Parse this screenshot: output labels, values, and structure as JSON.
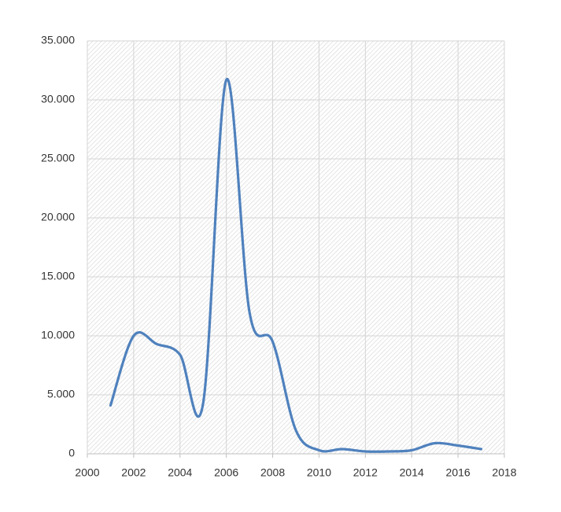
{
  "chart_data": {
    "type": "line",
    "x": [
      2001,
      2002,
      2003,
      2004,
      2005,
      2006,
      2007,
      2008,
      2009,
      2010,
      2011,
      2012,
      2013,
      2014,
      2015,
      2016,
      2017
    ],
    "series": [
      {
        "color": "#4f81bd",
        "values": [
          4100,
          10000,
          9300,
          8400,
          4300,
          31700,
          12000,
          9500,
          2000,
          300,
          400,
          200,
          200,
          300,
          900,
          700,
          400
        ]
      }
    ],
    "xlim": [
      2000,
      2018
    ],
    "xticks": [
      2000,
      2002,
      2004,
      2006,
      2008,
      2010,
      2012,
      2014,
      2016,
      2018
    ],
    "ylim": [
      0,
      35000
    ],
    "yticks": [
      0,
      {
        "value": 5000,
        "label": "5.000"
      },
      {
        "value": 10000,
        "label": "10.000"
      },
      {
        "value": 15000,
        "label": "15.000"
      },
      {
        "value": 20000,
        "label": "20.000"
      },
      {
        "value": 25000,
        "label": "25.000"
      },
      {
        "value": 30000,
        "label": "30.000"
      },
      {
        "value": 35000,
        "label": "35.000"
      }
    ],
    "grid": true
  }
}
